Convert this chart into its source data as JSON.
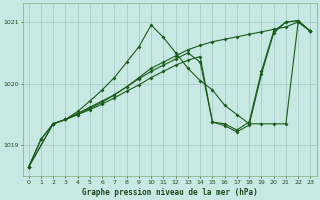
{
  "title": "Graphe pression niveau de la mer (hPa)",
  "bg_color": "#c8e8e4",
  "grid_color": "#a8ccc8",
  "line_color": "#1a5c1a",
  "xlim": [
    -0.5,
    23.5
  ],
  "ylim": [
    1018.5,
    1021.3
  ],
  "yticks": [
    1019,
    1020,
    1021
  ],
  "xtick_labels": [
    "0",
    "1",
    "2",
    "3",
    "4",
    "5",
    "6",
    "7",
    "8",
    "9",
    "10",
    "11",
    "12",
    "13",
    "14",
    "15",
    "16",
    "17",
    "18",
    "19",
    "20",
    "21",
    "22",
    "23"
  ],
  "series": [
    {
      "x": [
        0,
        1,
        2,
        3,
        4,
        5,
        6,
        7,
        8,
        9,
        10,
        11,
        12,
        13,
        14,
        15,
        16,
        17,
        18,
        19,
        20,
        21,
        22,
        23
      ],
      "y": [
        1018.65,
        1019.1,
        1019.35,
        1019.42,
        1019.55,
        1019.72,
        1019.9,
        1020.1,
        1020.35,
        1020.6,
        1020.95,
        1020.75,
        1020.5,
        1020.25,
        1020.05,
        1019.9,
        1019.65,
        1019.5,
        1019.35,
        1019.35,
        1019.35,
        1019.35,
        1021.0,
        1020.85
      ]
    },
    {
      "x": [
        0,
        1,
        2,
        3,
        4,
        5,
        6,
        7,
        8,
        9,
        10,
        11,
        12,
        13,
        14,
        15,
        16,
        17,
        18,
        19,
        20,
        21,
        22,
        23
      ],
      "y": [
        1018.65,
        1019.1,
        1019.35,
        1019.42,
        1019.52,
        1019.62,
        1019.72,
        1019.82,
        1019.95,
        1020.1,
        1020.25,
        1020.35,
        1020.45,
        1020.55,
        1020.62,
        1020.68,
        1020.72,
        1020.76,
        1020.8,
        1020.84,
        1020.88,
        1020.92,
        1021.0,
        1020.85
      ]
    },
    {
      "x": [
        0,
        2,
        3,
        4,
        5,
        6,
        7,
        8,
        9,
        10,
        11,
        12,
        13,
        14,
        15,
        16,
        17,
        18,
        19,
        20,
        21,
        22,
        23
      ],
      "y": [
        1018.65,
        1019.35,
        1019.42,
        1019.5,
        1019.58,
        1019.67,
        1019.77,
        1019.88,
        1019.98,
        1020.1,
        1020.2,
        1020.3,
        1020.38,
        1020.44,
        1019.38,
        1019.32,
        1019.22,
        1019.33,
        1020.15,
        1020.82,
        1021.0,
        1021.02,
        1020.85
      ]
    },
    {
      "x": [
        0,
        2,
        3,
        4,
        5,
        6,
        7,
        8,
        9,
        10,
        11,
        12,
        13,
        14,
        15,
        16,
        17,
        18,
        19,
        20,
        21,
        22,
        23
      ],
      "y": [
        1018.65,
        1019.35,
        1019.42,
        1019.5,
        1019.6,
        1019.7,
        1019.82,
        1019.95,
        1020.08,
        1020.2,
        1020.3,
        1020.4,
        1020.5,
        1020.35,
        1019.38,
        1019.35,
        1019.25,
        1019.38,
        1020.2,
        1020.85,
        1021.0,
        1021.02,
        1020.85
      ]
    }
  ]
}
